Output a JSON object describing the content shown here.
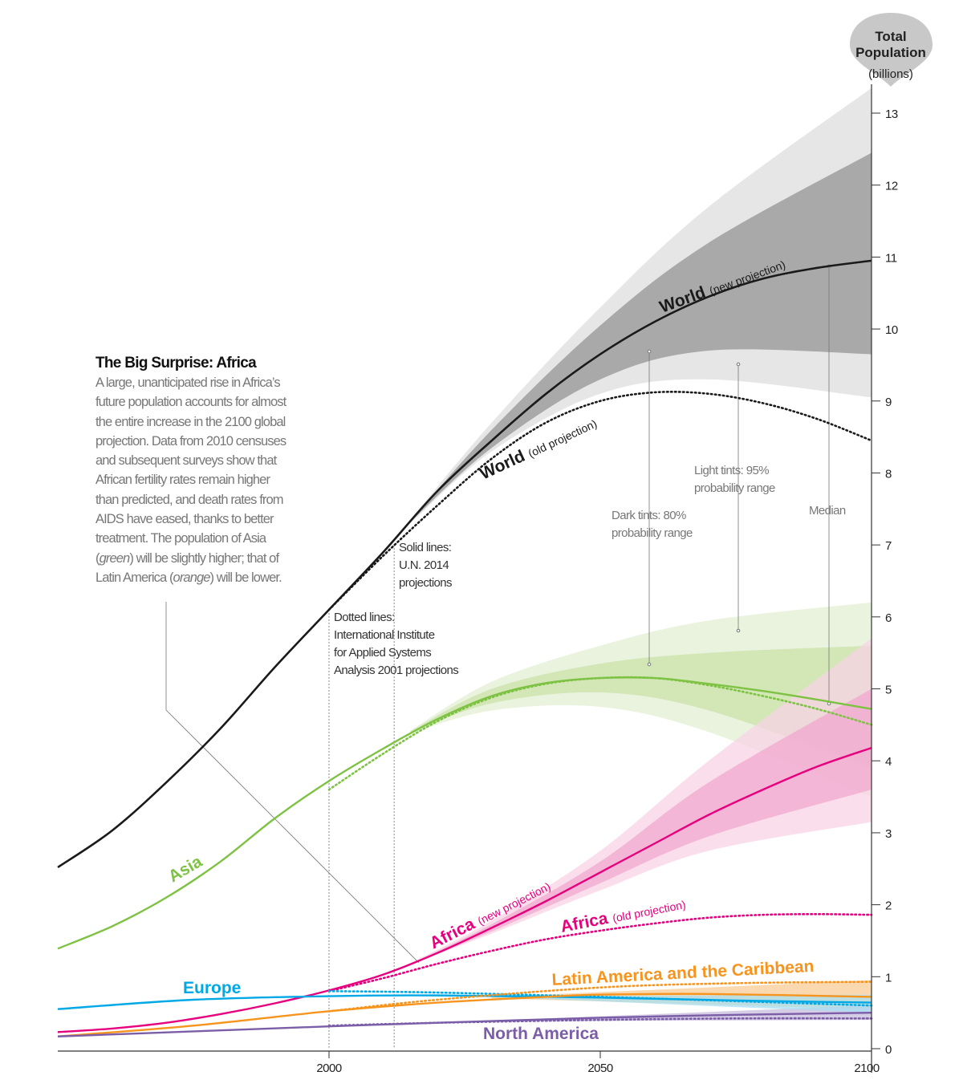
{
  "axis_title": {
    "line1": "Total",
    "line2": "Population",
    "line3": "(billions)"
  },
  "sidebar": {
    "title": "The Big Surprise: Africa",
    "body": [
      "A large, unanticipated rise in Africa’s",
      "future population accounts for almost",
      "the entire increase in the 2100 global",
      "projection. Data from 2010 censuses",
      "and subsequent surveys show that",
      "African fertility rates remain higher",
      "than predicted, and death rates from",
      "AIDS have eased, thanks to better",
      "treatment. The population of Asia"
    ],
    "asia_pre": "(",
    "asia_word": "green",
    "asia_post": ") will be slightly higher; that of",
    "latam_pre": "Latin America (",
    "latam_word": "orange",
    "latam_post": ") will be lower."
  },
  "annotations": {
    "solid": [
      "Solid lines:",
      "U.N. 2014",
      "projections"
    ],
    "dotted": [
      "Dotted lines:",
      "International Institute",
      "for Applied Systems",
      "Analysis 2001 projections"
    ],
    "dark": [
      "Dark tints: 80%",
      "probability range"
    ],
    "light": [
      "Light tints: 95%",
      "probability range"
    ],
    "median": "Median"
  },
  "chart_data": {
    "type": "line",
    "xlim": [
      1950,
      2100
    ],
    "ylim": [
      0,
      13
    ],
    "x_ticks": [
      "2000",
      "2050",
      "2100"
    ],
    "y_ticks": [
      "0",
      "1",
      "2",
      "3",
      "4",
      "5",
      "6",
      "7",
      "8",
      "9",
      "10",
      "11",
      "12",
      "13"
    ],
    "colors": {
      "world": "#1a1a1a",
      "asia": "#7dc242",
      "africa": "#e6007e",
      "europe": "#00a9e6",
      "latam": "#f7941d",
      "namerica": "#7b5ea7"
    },
    "series": [
      {
        "key": "world",
        "name": "World",
        "qualifier": "(new projection)",
        "style": "solid",
        "x": [
          1950,
          1960,
          1970,
          1980,
          1990,
          2000,
          2010,
          2020,
          2030,
          2040,
          2050,
          2060,
          2070,
          2080,
          2090,
          2100
        ],
        "y": [
          2.52,
          3.03,
          3.7,
          4.45,
          5.3,
          6.1,
          6.9,
          7.75,
          8.45,
          9.1,
          9.65,
          10.1,
          10.45,
          10.7,
          10.85,
          10.95
        ]
      },
      {
        "key": "world",
        "name": "World",
        "qualifier": "(old projection)",
        "style": "dotted",
        "x": [
          2000,
          2010,
          2020,
          2030,
          2040,
          2050,
          2060,
          2070,
          2080,
          2090,
          2100
        ],
        "y": [
          6.1,
          6.85,
          7.55,
          8.2,
          8.7,
          9.0,
          9.12,
          9.1,
          8.97,
          8.75,
          8.45
        ]
      },
      {
        "key": "asia",
        "name": "Asia",
        "style": "solid",
        "x": [
          1950,
          1960,
          1970,
          1980,
          1990,
          2000,
          2010,
          2020,
          2030,
          2040,
          2050,
          2060,
          2070,
          2080,
          2090,
          2100
        ],
        "y": [
          1.39,
          1.7,
          2.1,
          2.6,
          3.2,
          3.72,
          4.17,
          4.58,
          4.9,
          5.08,
          5.15,
          5.15,
          5.07,
          4.97,
          4.85,
          4.72
        ]
      },
      {
        "key": "asia",
        "name": "Asia",
        "style": "dotted",
        "x": [
          2000,
          2010,
          2020,
          2030,
          2040,
          2050,
          2060,
          2070,
          2080,
          2090,
          2100
        ],
        "y": [
          3.6,
          4.1,
          4.55,
          4.88,
          5.07,
          5.15,
          5.15,
          5.05,
          4.9,
          4.72,
          4.5
        ]
      },
      {
        "key": "africa",
        "name": "Africa",
        "qualifier": "(new projection)",
        "style": "solid",
        "x": [
          1950,
          1960,
          1970,
          1980,
          1990,
          2000,
          2010,
          2020,
          2030,
          2040,
          2050,
          2060,
          2070,
          2080,
          2090,
          2100
        ],
        "y": [
          0.23,
          0.28,
          0.36,
          0.48,
          0.63,
          0.81,
          1.03,
          1.33,
          1.68,
          2.05,
          2.45,
          2.85,
          3.25,
          3.6,
          3.92,
          4.18
        ]
      },
      {
        "key": "africa",
        "name": "Africa",
        "qualifier": "(old projection)",
        "style": "dotted",
        "x": [
          2000,
          2010,
          2020,
          2030,
          2040,
          2050,
          2060,
          2070,
          2080,
          2090,
          2100
        ],
        "y": [
          0.8,
          0.98,
          1.18,
          1.36,
          1.52,
          1.64,
          1.74,
          1.82,
          1.86,
          1.87,
          1.86
        ]
      },
      {
        "key": "europe",
        "name": "Europe",
        "style": "solid",
        "x": [
          1950,
          1975,
          2000,
          2020,
          2050,
          2075,
          2100
        ],
        "y": [
          0.55,
          0.68,
          0.73,
          0.74,
          0.71,
          0.67,
          0.64
        ]
      },
      {
        "key": "europe",
        "name": "Europe",
        "style": "dotted",
        "x": [
          2000,
          2020,
          2050,
          2075,
          2100
        ],
        "y": [
          0.8,
          0.78,
          0.72,
          0.66,
          0.6
        ]
      },
      {
        "key": "latam",
        "name": "Latin America and the Caribbean",
        "style": "solid",
        "x": [
          1950,
          1975,
          2000,
          2020,
          2040,
          2050,
          2070,
          2100
        ],
        "y": [
          0.17,
          0.32,
          0.52,
          0.64,
          0.72,
          0.75,
          0.76,
          0.72
        ]
      },
      {
        "key": "latam",
        "name": "Latin America and the Caribbean",
        "style": "dotted",
        "x": [
          2000,
          2020,
          2050,
          2075,
          2100
        ],
        "y": [
          0.52,
          0.68,
          0.85,
          0.91,
          0.93
        ]
      },
      {
        "key": "namerica",
        "name": "North America",
        "style": "solid",
        "x": [
          1950,
          1975,
          2000,
          2020,
          2050,
          2075,
          2100
        ],
        "y": [
          0.17,
          0.24,
          0.31,
          0.36,
          0.43,
          0.47,
          0.5
        ]
      },
      {
        "key": "namerica",
        "name": "North America",
        "style": "dotted",
        "x": [
          2000,
          2020,
          2050,
          2075,
          2100
        ],
        "y": [
          0.32,
          0.36,
          0.4,
          0.42,
          0.42
        ]
      }
    ],
    "bands": [
      {
        "key": "world",
        "level": "95%",
        "x": [
          2015,
          2030,
          2050,
          2070,
          2100
        ],
        "low": [
          7.3,
          8.3,
          9.1,
          9.3,
          9.05
        ],
        "high": [
          7.35,
          8.7,
          10.3,
          11.7,
          13.35
        ]
      },
      {
        "key": "world",
        "level": "80%",
        "x": [
          2015,
          2030,
          2050,
          2070,
          2100
        ],
        "low": [
          7.32,
          8.35,
          9.3,
          9.7,
          9.65
        ],
        "high": [
          7.33,
          8.6,
          10.05,
          11.2,
          12.45
        ]
      },
      {
        "key": "asia",
        "level": "95%",
        "x": [
          2015,
          2030,
          2050,
          2070,
          2100
        ],
        "low": [
          4.38,
          4.7,
          4.75,
          4.4,
          3.5
        ],
        "high": [
          4.42,
          5.1,
          5.6,
          5.95,
          6.2
        ]
      },
      {
        "key": "asia",
        "level": "80%",
        "x": [
          2015,
          2030,
          2050,
          2070,
          2100
        ],
        "low": [
          4.39,
          4.8,
          4.95,
          4.7,
          3.9
        ],
        "high": [
          4.41,
          5.0,
          5.35,
          5.5,
          5.6
        ]
      },
      {
        "key": "africa",
        "level": "95%",
        "x": [
          2015,
          2030,
          2050,
          2070,
          2100
        ],
        "low": [
          1.17,
          1.6,
          2.2,
          2.75,
          3.15
        ],
        "high": [
          1.19,
          1.78,
          2.75,
          4.0,
          5.7
        ]
      },
      {
        "key": "africa",
        "level": "80%",
        "x": [
          2015,
          2030,
          2050,
          2070,
          2100
        ],
        "low": [
          1.17,
          1.63,
          2.3,
          2.95,
          3.6
        ],
        "high": [
          1.18,
          1.73,
          2.6,
          3.7,
          5.0
        ]
      },
      {
        "key": "latam",
        "level": "95%",
        "x": [
          2030,
          2100
        ],
        "low": [
          0.7,
          0.55
        ],
        "high": [
          0.72,
          0.95
        ]
      },
      {
        "key": "namerica",
        "level": "95%",
        "x": [
          2030,
          2100
        ],
        "low": [
          0.38,
          0.4
        ],
        "high": [
          0.39,
          0.6
        ]
      },
      {
        "key": "europe",
        "level": "95%",
        "x": [
          2030,
          2100
        ],
        "low": [
          0.72,
          0.5
        ],
        "high": [
          0.73,
          0.75
        ]
      }
    ],
    "reference_lines": [
      2000,
      2012
    ]
  }
}
